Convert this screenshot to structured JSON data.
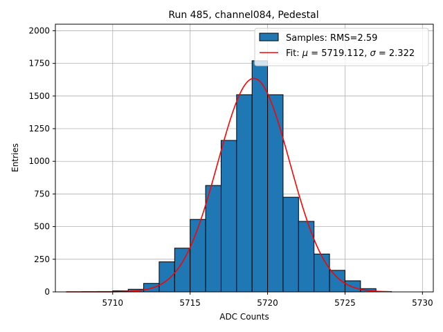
{
  "chart_data": {
    "type": "bar",
    "title": "Run 485, channel084, Pedestal",
    "xlabel": "ADC Counts",
    "ylabel": "Entries",
    "xlim": [
      5706.3,
      5730.7
    ],
    "ylim": [
      0,
      2050
    ],
    "x_ticks": [
      5710,
      5715,
      5720,
      5725,
      5730
    ],
    "x_tick_labels": [
      "5710",
      "5715",
      "5720",
      "5725",
      "5730"
    ],
    "y_ticks": [
      0,
      250,
      500,
      750,
      1000,
      1250,
      1500,
      1750,
      2000
    ],
    "y_tick_labels": [
      "0",
      "250",
      "500",
      "750",
      "1000",
      "1250",
      "1500",
      "1750",
      "2000"
    ],
    "grid": true,
    "legend_position": "top-right",
    "histogram": {
      "name": "Samples: RMS=2.59",
      "color": "#1f77b4",
      "edge_color": "#000000",
      "bin_edges": [
        5707,
        5708,
        5709,
        5710,
        5711,
        5712,
        5713,
        5714,
        5715,
        5716,
        5717,
        5718,
        5719,
        5720,
        5721,
        5722,
        5723,
        5724,
        5725,
        5726,
        5727,
        5728
      ],
      "counts": [
        1,
        2,
        3,
        8,
        20,
        65,
        230,
        335,
        555,
        815,
        1160,
        1510,
        1770,
        1510,
        725,
        540,
        290,
        165,
        85,
        25,
        3
      ]
    },
    "fit": {
      "name": "Fit: μ = 5719.112, σ = 2.322",
      "label_parts": [
        "Fit: ",
        "μ",
        " = 5719.112, ",
        "σ",
        " = 2.322"
      ],
      "color": "#ff0000",
      "mu": 5719.112,
      "sigma": 2.322,
      "amplitude": 1635,
      "x_range": [
        5707,
        5728
      ]
    }
  }
}
